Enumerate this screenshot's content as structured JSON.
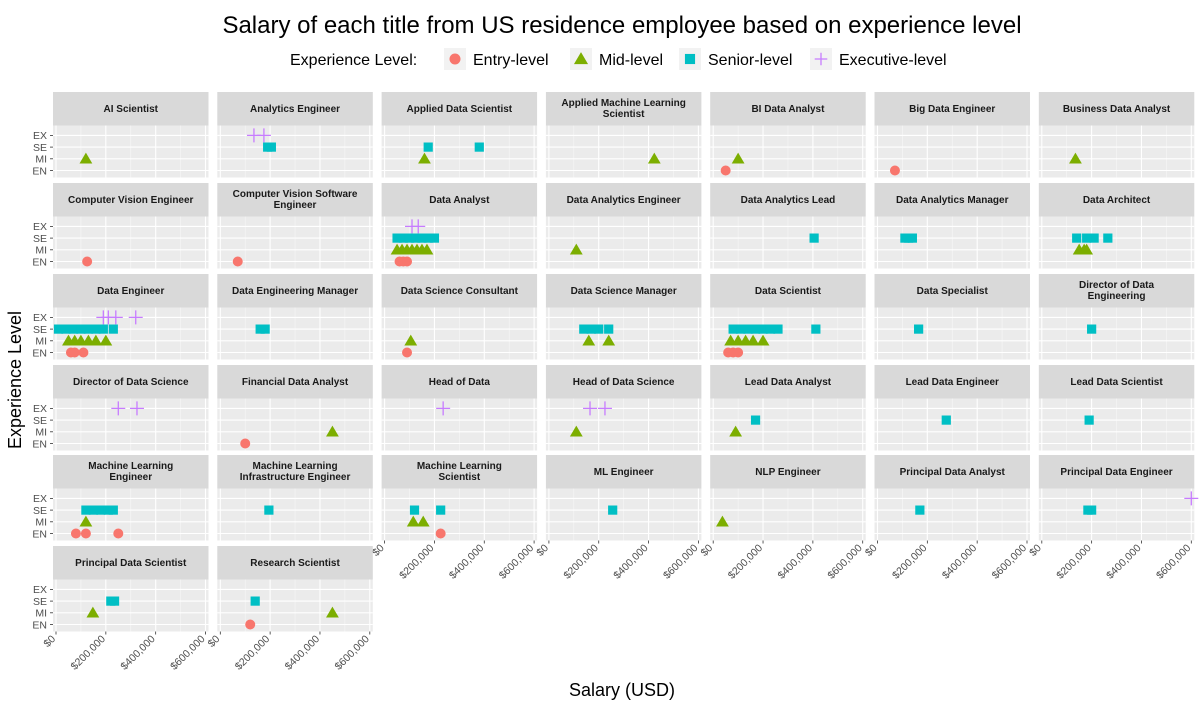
{
  "chart_data": {
    "type": "scatter",
    "title": "Salary of each title from US residence employee based on experience level",
    "xlabel": "Salary (USD)",
    "ylabel": "Experience Level",
    "xlim": [
      0,
      600000
    ],
    "x_ticks": [
      0,
      200000,
      400000,
      600000
    ],
    "x_tick_labels": [
      "$0",
      "$200,000",
      "$400,000",
      "$600,000"
    ],
    "y_levels": [
      "EN",
      "MI",
      "SE",
      "EX"
    ],
    "grid": true,
    "legend": {
      "title": "Experience Level:",
      "position": "top",
      "entries": [
        {
          "name": "Entry-level",
          "code": "EN",
          "color": "#F8766D",
          "shape": "circle"
        },
        {
          "name": "Mid-level",
          "code": "MI",
          "color": "#7CAE00",
          "shape": "triangle"
        },
        {
          "name": "Senior-level",
          "code": "SE",
          "color": "#00BFC4",
          "shape": "square"
        },
        {
          "name": "Executive-level",
          "code": "EX",
          "color": "#C77CFF",
          "shape": "plus"
        }
      ]
    },
    "facets": [
      {
        "title": [
          "AI Scientist"
        ],
        "points": [
          [
            "MI",
            120000
          ]
        ]
      },
      {
        "title": [
          "Analytics Engineer"
        ],
        "points": [
          [
            "EX",
            135000
          ],
          [
            "EX",
            175000
          ],
          [
            "SE",
            190000
          ],
          [
            "SE",
            205000
          ]
        ]
      },
      {
        "title": [
          "Applied Data Scientist"
        ],
        "points": [
          [
            "MI",
            160000
          ],
          [
            "SE",
            175000
          ],
          [
            "SE",
            380000
          ]
        ]
      },
      {
        "title": [
          "Applied Machine Learning",
          "Scientist"
        ],
        "points": [
          [
            "MI",
            423000
          ]
        ]
      },
      {
        "title": [
          "BI Data Analyst"
        ],
        "points": [
          [
            "EN",
            50000
          ],
          [
            "MI",
            100000
          ]
        ]
      },
      {
        "title": [
          "Big Data Engineer"
        ],
        "points": [
          [
            "EN",
            70000
          ]
        ]
      },
      {
        "title": [
          "Business Data Analyst"
        ],
        "points": [
          [
            "MI",
            135000
          ]
        ]
      },
      {
        "title": [
          "Computer Vision Engineer"
        ],
        "points": [
          [
            "EN",
            125000
          ]
        ]
      },
      {
        "title": [
          "Computer Vision Software",
          "Engineer"
        ],
        "points": [
          [
            "EN",
            70000
          ]
        ]
      },
      {
        "title": [
          "Data Analyst"
        ],
        "points": [
          [
            "EN",
            60000
          ],
          [
            "EN",
            75000
          ],
          [
            "EN",
            90000
          ],
          [
            "MI",
            50000
          ],
          [
            "MI",
            70000
          ],
          [
            "MI",
            90000
          ],
          [
            "MI",
            110000
          ],
          [
            "MI",
            130000
          ],
          [
            "MI",
            150000
          ],
          [
            "MI",
            170000
          ],
          [
            "SE",
            50000
          ],
          [
            "SE",
            75000
          ],
          [
            "SE",
            100000
          ],
          [
            "SE",
            125000
          ],
          [
            "SE",
            150000
          ],
          [
            "SE",
            175000
          ],
          [
            "SE",
            200000
          ],
          [
            "EX",
            110000
          ],
          [
            "EX",
            135000
          ]
        ]
      },
      {
        "title": [
          "Data Analytics Engineer"
        ],
        "points": [
          [
            "MI",
            110000
          ]
        ]
      },
      {
        "title": [
          "Data Analytics Lead"
        ],
        "points": [
          [
            "SE",
            405000
          ]
        ]
      },
      {
        "title": [
          "Data Analytics Manager"
        ],
        "points": [
          [
            "SE",
            110000
          ],
          [
            "SE",
            125000
          ],
          [
            "SE",
            140000
          ]
        ]
      },
      {
        "title": [
          "Data Architect"
        ],
        "points": [
          [
            "MI",
            150000
          ],
          [
            "MI",
            170000
          ],
          [
            "MI",
            180000
          ],
          [
            "SE",
            140000
          ],
          [
            "SE",
            180000
          ],
          [
            "SE",
            210000
          ],
          [
            "SE",
            265000
          ]
        ]
      },
      {
        "title": [
          "Data Engineer"
        ],
        "points": [
          [
            "EN",
            60000
          ],
          [
            "EN",
            75000
          ],
          [
            "EN",
            110000
          ],
          [
            "MI",
            50000
          ],
          [
            "MI",
            75000
          ],
          [
            "MI",
            100000
          ],
          [
            "MI",
            130000
          ],
          [
            "MI",
            160000
          ],
          [
            "MI",
            200000
          ],
          [
            "SE",
            10000
          ],
          [
            "SE",
            40000
          ],
          [
            "SE",
            70000
          ],
          [
            "SE",
            100000
          ],
          [
            "SE",
            130000
          ],
          [
            "SE",
            160000
          ],
          [
            "SE",
            190000
          ],
          [
            "SE",
            230000
          ],
          [
            "EX",
            190000
          ],
          [
            "EX",
            210000
          ],
          [
            "EX",
            240000
          ],
          [
            "EX",
            320000
          ]
        ]
      },
      {
        "title": [
          "Data Engineering Manager"
        ],
        "points": [
          [
            "SE",
            160000
          ],
          [
            "SE",
            180000
          ]
        ]
      },
      {
        "title": [
          "Data Science Consultant"
        ],
        "points": [
          [
            "EN",
            90000
          ],
          [
            "MI",
            105000
          ]
        ]
      },
      {
        "title": [
          "Data Science Manager"
        ],
        "points": [
          [
            "MI",
            160000
          ],
          [
            "MI",
            240000
          ],
          [
            "SE",
            140000
          ],
          [
            "SE",
            170000
          ],
          [
            "SE",
            200000
          ],
          [
            "SE",
            240000
          ]
        ]
      },
      {
        "title": [
          "Data Scientist"
        ],
        "points": [
          [
            "EN",
            60000
          ],
          [
            "EN",
            80000
          ],
          [
            "EN",
            100000
          ],
          [
            "MI",
            70000
          ],
          [
            "MI",
            100000
          ],
          [
            "MI",
            130000
          ],
          [
            "MI",
            160000
          ],
          [
            "MI",
            200000
          ],
          [
            "SE",
            80000
          ],
          [
            "SE",
            110000
          ],
          [
            "SE",
            140000
          ],
          [
            "SE",
            170000
          ],
          [
            "SE",
            200000
          ],
          [
            "SE",
            230000
          ],
          [
            "SE",
            260000
          ],
          [
            "SE",
            412000
          ]
        ]
      },
      {
        "title": [
          "Data Specialist"
        ],
        "points": [
          [
            "SE",
            165000
          ]
        ]
      },
      {
        "title": [
          "Director of Data",
          "Engineering"
        ],
        "points": [
          [
            "SE",
            200000
          ]
        ]
      },
      {
        "title": [
          "Director of Data Science"
        ],
        "points": [
          [
            "EX",
            250000
          ],
          [
            "EX",
            325000
          ]
        ]
      },
      {
        "title": [
          "Financial Data Analyst"
        ],
        "points": [
          [
            "EN",
            100000
          ],
          [
            "MI",
            450000
          ]
        ]
      },
      {
        "title": [
          "Head of Data"
        ],
        "points": [
          [
            "EX",
            235000
          ]
        ]
      },
      {
        "title": [
          "Head of Data Science"
        ],
        "points": [
          [
            "MI",
            110000
          ],
          [
            "EX",
            165000
          ],
          [
            "EX",
            225000
          ]
        ]
      },
      {
        "title": [
          "Lead Data Analyst"
        ],
        "points": [
          [
            "MI",
            90000
          ],
          [
            "SE",
            170000
          ]
        ]
      },
      {
        "title": [
          "Lead Data Engineer"
        ],
        "points": [
          [
            "SE",
            276000
          ]
        ]
      },
      {
        "title": [
          "Lead Data Scientist"
        ],
        "points": [
          [
            "SE",
            190000
          ]
        ]
      },
      {
        "title": [
          "Machine Learning",
          "Engineer"
        ],
        "points": [
          [
            "EN",
            80000
          ],
          [
            "EN",
            120000
          ],
          [
            "EN",
            250000
          ],
          [
            "MI",
            120000
          ],
          [
            "SE",
            120000
          ],
          [
            "SE",
            150000
          ],
          [
            "SE",
            180000
          ],
          [
            "SE",
            210000
          ],
          [
            "SE",
            230000
          ]
        ]
      },
      {
        "title": [
          "Machine Learning",
          "Infrastructure Engineer"
        ],
        "points": [
          [
            "SE",
            195000
          ]
        ]
      },
      {
        "title": [
          "Machine Learning",
          "Scientist"
        ],
        "points": [
          [
            "EN",
            225000
          ],
          [
            "MI",
            115000
          ],
          [
            "MI",
            155000
          ],
          [
            "SE",
            120000
          ],
          [
            "SE",
            225000
          ]
        ]
      },
      {
        "title": [
          "ML Engineer"
        ],
        "points": [
          [
            "SE",
            256000
          ]
        ]
      },
      {
        "title": [
          "NLP Engineer"
        ],
        "points": [
          [
            "MI",
            37000
          ]
        ]
      },
      {
        "title": [
          "Principal Data Analyst"
        ],
        "points": [
          [
            "SE",
            170000
          ]
        ]
      },
      {
        "title": [
          "Principal Data Engineer"
        ],
        "points": [
          [
            "SE",
            185000
          ],
          [
            "SE",
            200000
          ],
          [
            "EX",
            600000
          ]
        ]
      },
      {
        "title": [
          "Principal Data Scientist"
        ],
        "points": [
          [
            "MI",
            148000
          ],
          [
            "SE",
            220000
          ],
          [
            "SE",
            235000
          ]
        ]
      },
      {
        "title": [
          "Research Scientist"
        ],
        "points": [
          [
            "EN",
            120000
          ],
          [
            "SE",
            140000
          ],
          [
            "MI",
            450000
          ]
        ]
      }
    ]
  }
}
